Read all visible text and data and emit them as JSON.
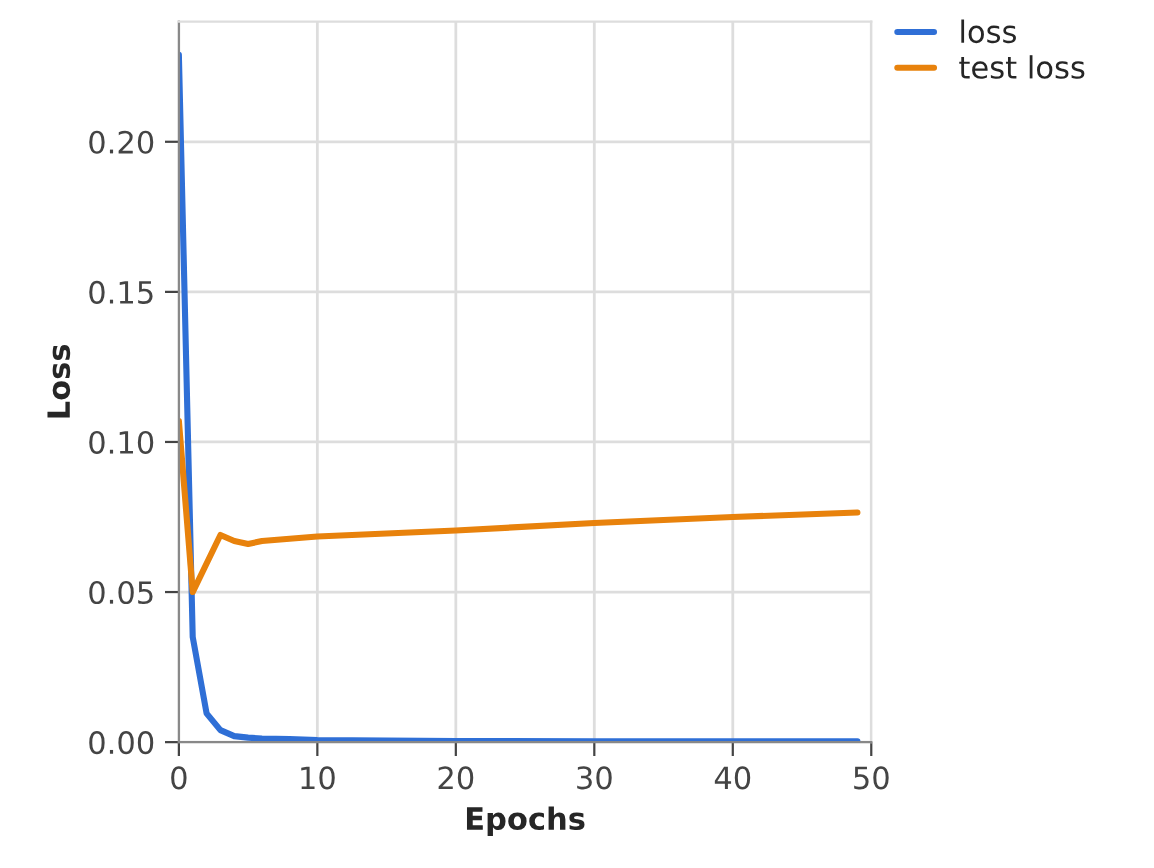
{
  "chart_data": {
    "type": "line",
    "xlabel": "Epochs",
    "ylabel": "Loss",
    "xlim": [
      0,
      50
    ],
    "xticks": [
      0,
      10,
      20,
      30,
      40,
      50
    ],
    "ylim": [
      0,
      0.24
    ],
    "yticks": [
      {
        "value": 0,
        "label": "0.00"
      },
      {
        "value": 0.05,
        "label": "0.05"
      },
      {
        "value": 0.1,
        "label": "0.10"
      },
      {
        "value": 0.15,
        "label": "0.15"
      },
      {
        "value": 0.2,
        "label": "0.20"
      }
    ],
    "grid": true,
    "legend": "top right",
    "marker": "none",
    "line_style": "solid",
    "series": [
      {
        "name": "loss",
        "color": "#2f6fd6",
        "x": [
          0,
          1,
          2,
          3,
          4,
          5,
          6,
          8,
          10,
          15,
          20,
          30,
          40,
          49
        ],
        "values": [
          0.229,
          0.035,
          0.0096,
          0.004,
          0.002,
          0.0015,
          0.0012,
          0.001,
          0.0007,
          0.0005,
          0.0004,
          0.0003,
          0.0003,
          0.0003
        ]
      },
      {
        "name": "test loss",
        "color": "#e8820c",
        "x": [
          0,
          1,
          3,
          4,
          5,
          6,
          10,
          20,
          30,
          40,
          49
        ],
        "values": [
          0.107,
          0.05,
          0.069,
          0.067,
          0.066,
          0.067,
          0.0685,
          0.0705,
          0.073,
          0.075,
          0.0765
        ]
      }
    ]
  }
}
